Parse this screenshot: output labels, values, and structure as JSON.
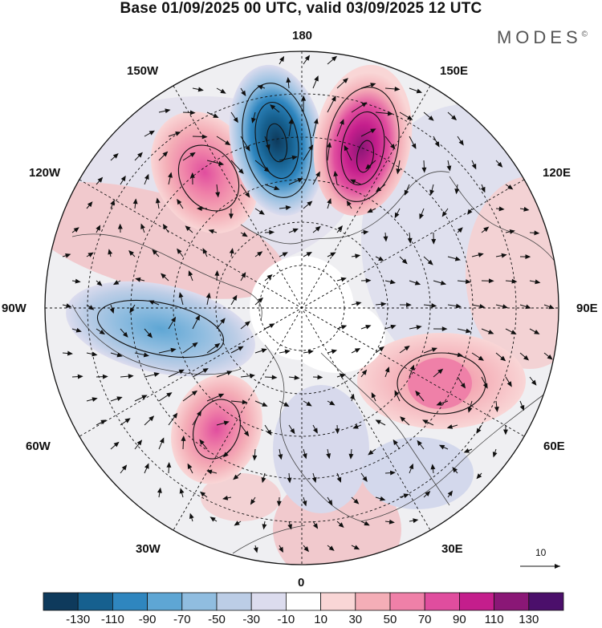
{
  "title": "Base 01/09/2025 00 UTC, valid 03/09/2025 12 UTC",
  "brand": "MODES",
  "brand_mark": "©",
  "longitude_labels": {
    "top": "180",
    "top_left": "150W",
    "top_right": "150E",
    "upper_left": "120W",
    "upper_right": "120E",
    "left": "90W",
    "right": "90E",
    "lower_left": "60W",
    "lower_right": "60E",
    "bottom_left": "30W",
    "bottom_right": "30E",
    "bottom": "0"
  },
  "vector_reference": {
    "label": "10"
  },
  "colorbar": {
    "ticks": [
      "-130",
      "-110",
      "-90",
      "-70",
      "-50",
      "-30",
      "-10",
      "10",
      "30",
      "50",
      "70",
      "90",
      "110",
      "130"
    ],
    "colors": [
      "#0e3a5c",
      "#16608f",
      "#2f86bf",
      "#5ea6d4",
      "#90bde0",
      "#bccde6",
      "#dcdcee",
      "#ffffff",
      "#f9d6d6",
      "#f4aeb7",
      "#ef80a8",
      "#e04d9e",
      "#c41e8c",
      "#8a1776",
      "#4b0f6b"
    ]
  },
  "anomalies": [
    {
      "name": "north-pacific-low",
      "sign": "negative",
      "peak": -130,
      "color": "#16608f"
    },
    {
      "name": "bering-high",
      "sign": "positive",
      "peak": 110,
      "color": "#c41e8c"
    },
    {
      "name": "alaska-high",
      "sign": "positive",
      "peak": 90,
      "color": "#e04d9e"
    },
    {
      "name": "north-atlantic-high",
      "sign": "positive",
      "peak": 90,
      "color": "#e04d9e"
    },
    {
      "name": "central-asia-high",
      "sign": "positive",
      "peak": 70,
      "color": "#ef80a8"
    },
    {
      "name": "canada-low",
      "sign": "negative",
      "peak": -70,
      "color": "#5ea6d4"
    }
  ]
}
